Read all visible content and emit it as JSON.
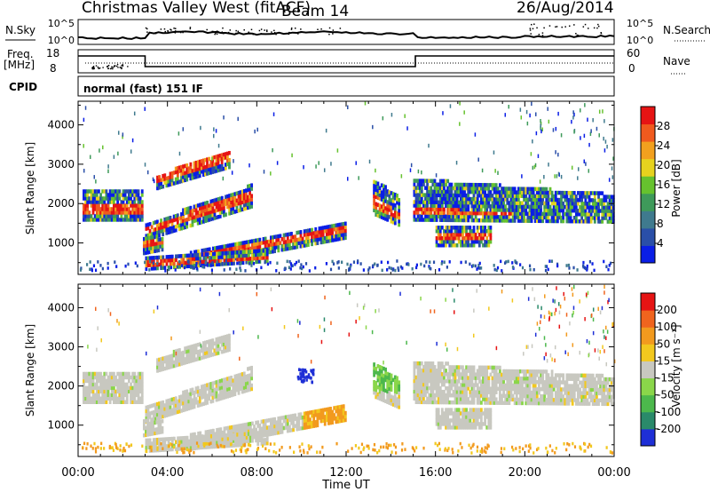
{
  "header": {
    "station": "Christmas Valley West (fitACF)",
    "beam": "Beam 14",
    "date": "26/Aug/2014"
  },
  "top_panels": {
    "nsky_label": "N.Sky",
    "nsky_ticks": [
      "10^5",
      "10^0"
    ],
    "nsearch_label": "N.Search",
    "nsearch_ticks": [
      "10^5",
      "10^0"
    ],
    "freq_label_1": "Freq.",
    "freq_label_2": "[MHz]",
    "freq_ticks": [
      "18",
      "8"
    ],
    "nave_label": "Nave",
    "nave_ticks": [
      "60",
      "0"
    ],
    "cpid_label": "CPID",
    "cpid_value": "normal (fast) 151 IF"
  },
  "chart_data": [
    {
      "type": "heatmap",
      "name": "power",
      "ylabel": "Slant Range [km]",
      "yticks": [
        1000,
        2000,
        3000,
        4000
      ],
      "ylim": [
        200,
        4600
      ],
      "xlim": [
        0,
        24
      ],
      "colorbar_label": "Power [dB]",
      "colorbar_ticks": [
        "4",
        "8",
        "12",
        "16",
        "20",
        "24",
        "28"
      ],
      "colorbar_colors": [
        "#0a1ee6",
        "#2a4fa8",
        "#3f7a8e",
        "#3e9a5a",
        "#66c22e",
        "#e6d21e",
        "#f2a01e",
        "#f05a1e",
        "#e61414"
      ],
      "colorbar_range": [
        0,
        32
      ]
    },
    {
      "type": "heatmap",
      "name": "velocity",
      "ylabel": "Slant Range [km]",
      "yticks": [
        1000,
        2000,
        3000,
        4000
      ],
      "ylim": [
        200,
        4600
      ],
      "xlim": [
        0,
        24
      ],
      "colorbar_label": "Velocity [m s⁻¹]",
      "colorbar_ticks": [
        "200",
        "100",
        "50",
        "15",
        "-15",
        "-50",
        "-100",
        "-200"
      ],
      "colorbar_colors": [
        "#1e2fd6",
        "#2a8a6a",
        "#4cb84c",
        "#8ad64a",
        "#c8c8c0",
        "#f2c81e",
        "#f29a1e",
        "#f0641e",
        "#e61414"
      ]
    }
  ],
  "time_axis": {
    "label": "Time UT",
    "ticks": [
      "00:00",
      "04:00",
      "08:00",
      "12:00",
      "16:00",
      "20:00",
      "00:00"
    ]
  }
}
